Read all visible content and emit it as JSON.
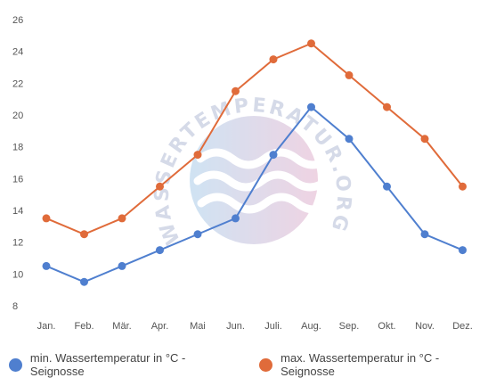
{
  "chart_data": {
    "type": "line",
    "categories": [
      "Jan.",
      "Feb.",
      "Mär.",
      "Apr.",
      "Mai",
      "Jun.",
      "Juli.",
      "Aug.",
      "Sep.",
      "Okt.",
      "Nov.",
      "Dez."
    ],
    "series": [
      {
        "name": "min. Wassertemperatur in °C - Seignosse",
        "color": "#4f7fcf",
        "values": [
          10.5,
          9.5,
          10.5,
          11.5,
          12.5,
          13.5,
          17.5,
          20.5,
          18.5,
          15.5,
          12.5,
          11.5
        ]
      },
      {
        "name": "max. Wassertemperatur in °C - Seignosse",
        "color": "#e06b3a",
        "values": [
          13.5,
          12.5,
          13.5,
          15.5,
          17.5,
          21.5,
          23.5,
          24.5,
          22.5,
          20.5,
          18.5,
          15.5
        ]
      }
    ],
    "yticks": [
      8,
      10,
      12,
      14,
      16,
      18,
      20,
      22,
      24,
      26
    ],
    "ylim": [
      8,
      26
    ],
    "grid": false,
    "legend_position": "bottom"
  },
  "watermark": {
    "text": "WASSERTEMPERATUR.ORG"
  }
}
